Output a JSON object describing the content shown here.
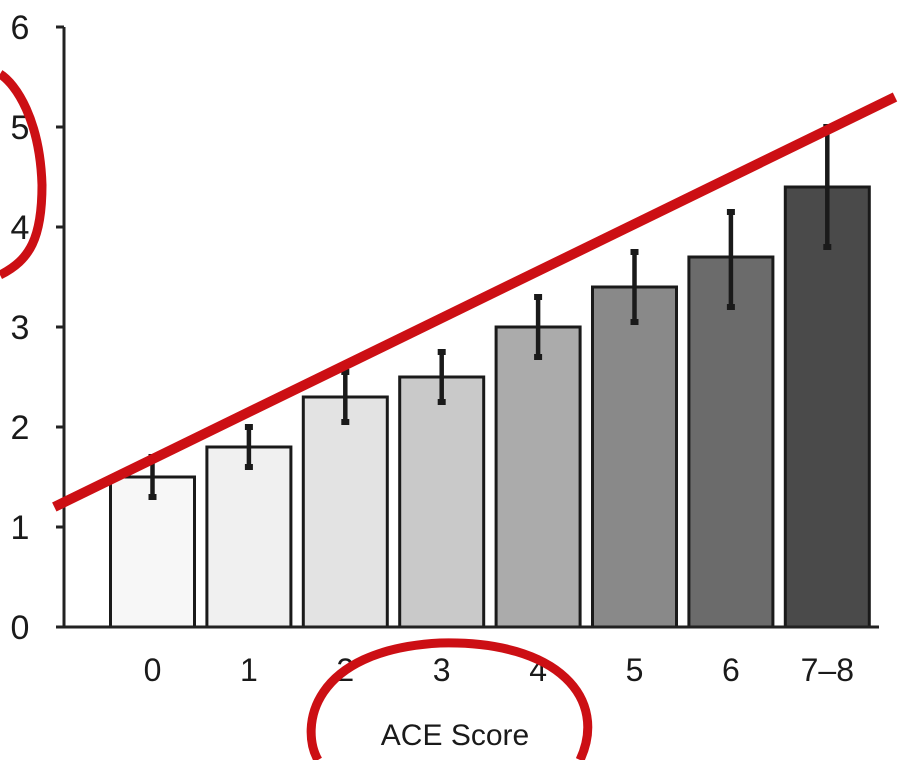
{
  "chart_data": {
    "type": "bar",
    "xlabel": "ACE Score",
    "ylabel": "",
    "title": "",
    "ylim": [
      0,
      6
    ],
    "yticks": [
      "0",
      "1",
      "2",
      "3",
      "4",
      "5",
      "6"
    ],
    "categories": [
      "0",
      "1",
      "2",
      "3",
      "4",
      "5",
      "6",
      "7–8"
    ],
    "values": [
      1.5,
      1.8,
      2.3,
      2.5,
      3.0,
      3.4,
      3.7,
      4.4
    ],
    "error_low": [
      1.3,
      1.6,
      2.05,
      2.25,
      2.7,
      3.05,
      3.2,
      3.8
    ],
    "error_high": [
      1.7,
      2.0,
      2.55,
      2.75,
      3.3,
      3.75,
      4.15,
      5.0
    ],
    "bar_colors": [
      "#f7f7f7",
      "#f0f0f0",
      "#e3e3e3",
      "#c9c9c9",
      "#ababab",
      "#898989",
      "#6b6b6b",
      "#4a4a4a"
    ],
    "grid": false,
    "legend": "none",
    "annotations": {
      "trend_line": {
        "from": [
          -0.5,
          1.35
        ],
        "to": [
          7.5,
          5.05
        ],
        "color": "#cc0f14"
      },
      "circle_marks": [
        "y-axis",
        "x-axis-label"
      ],
      "annotation_color": "#cc0f14"
    }
  }
}
